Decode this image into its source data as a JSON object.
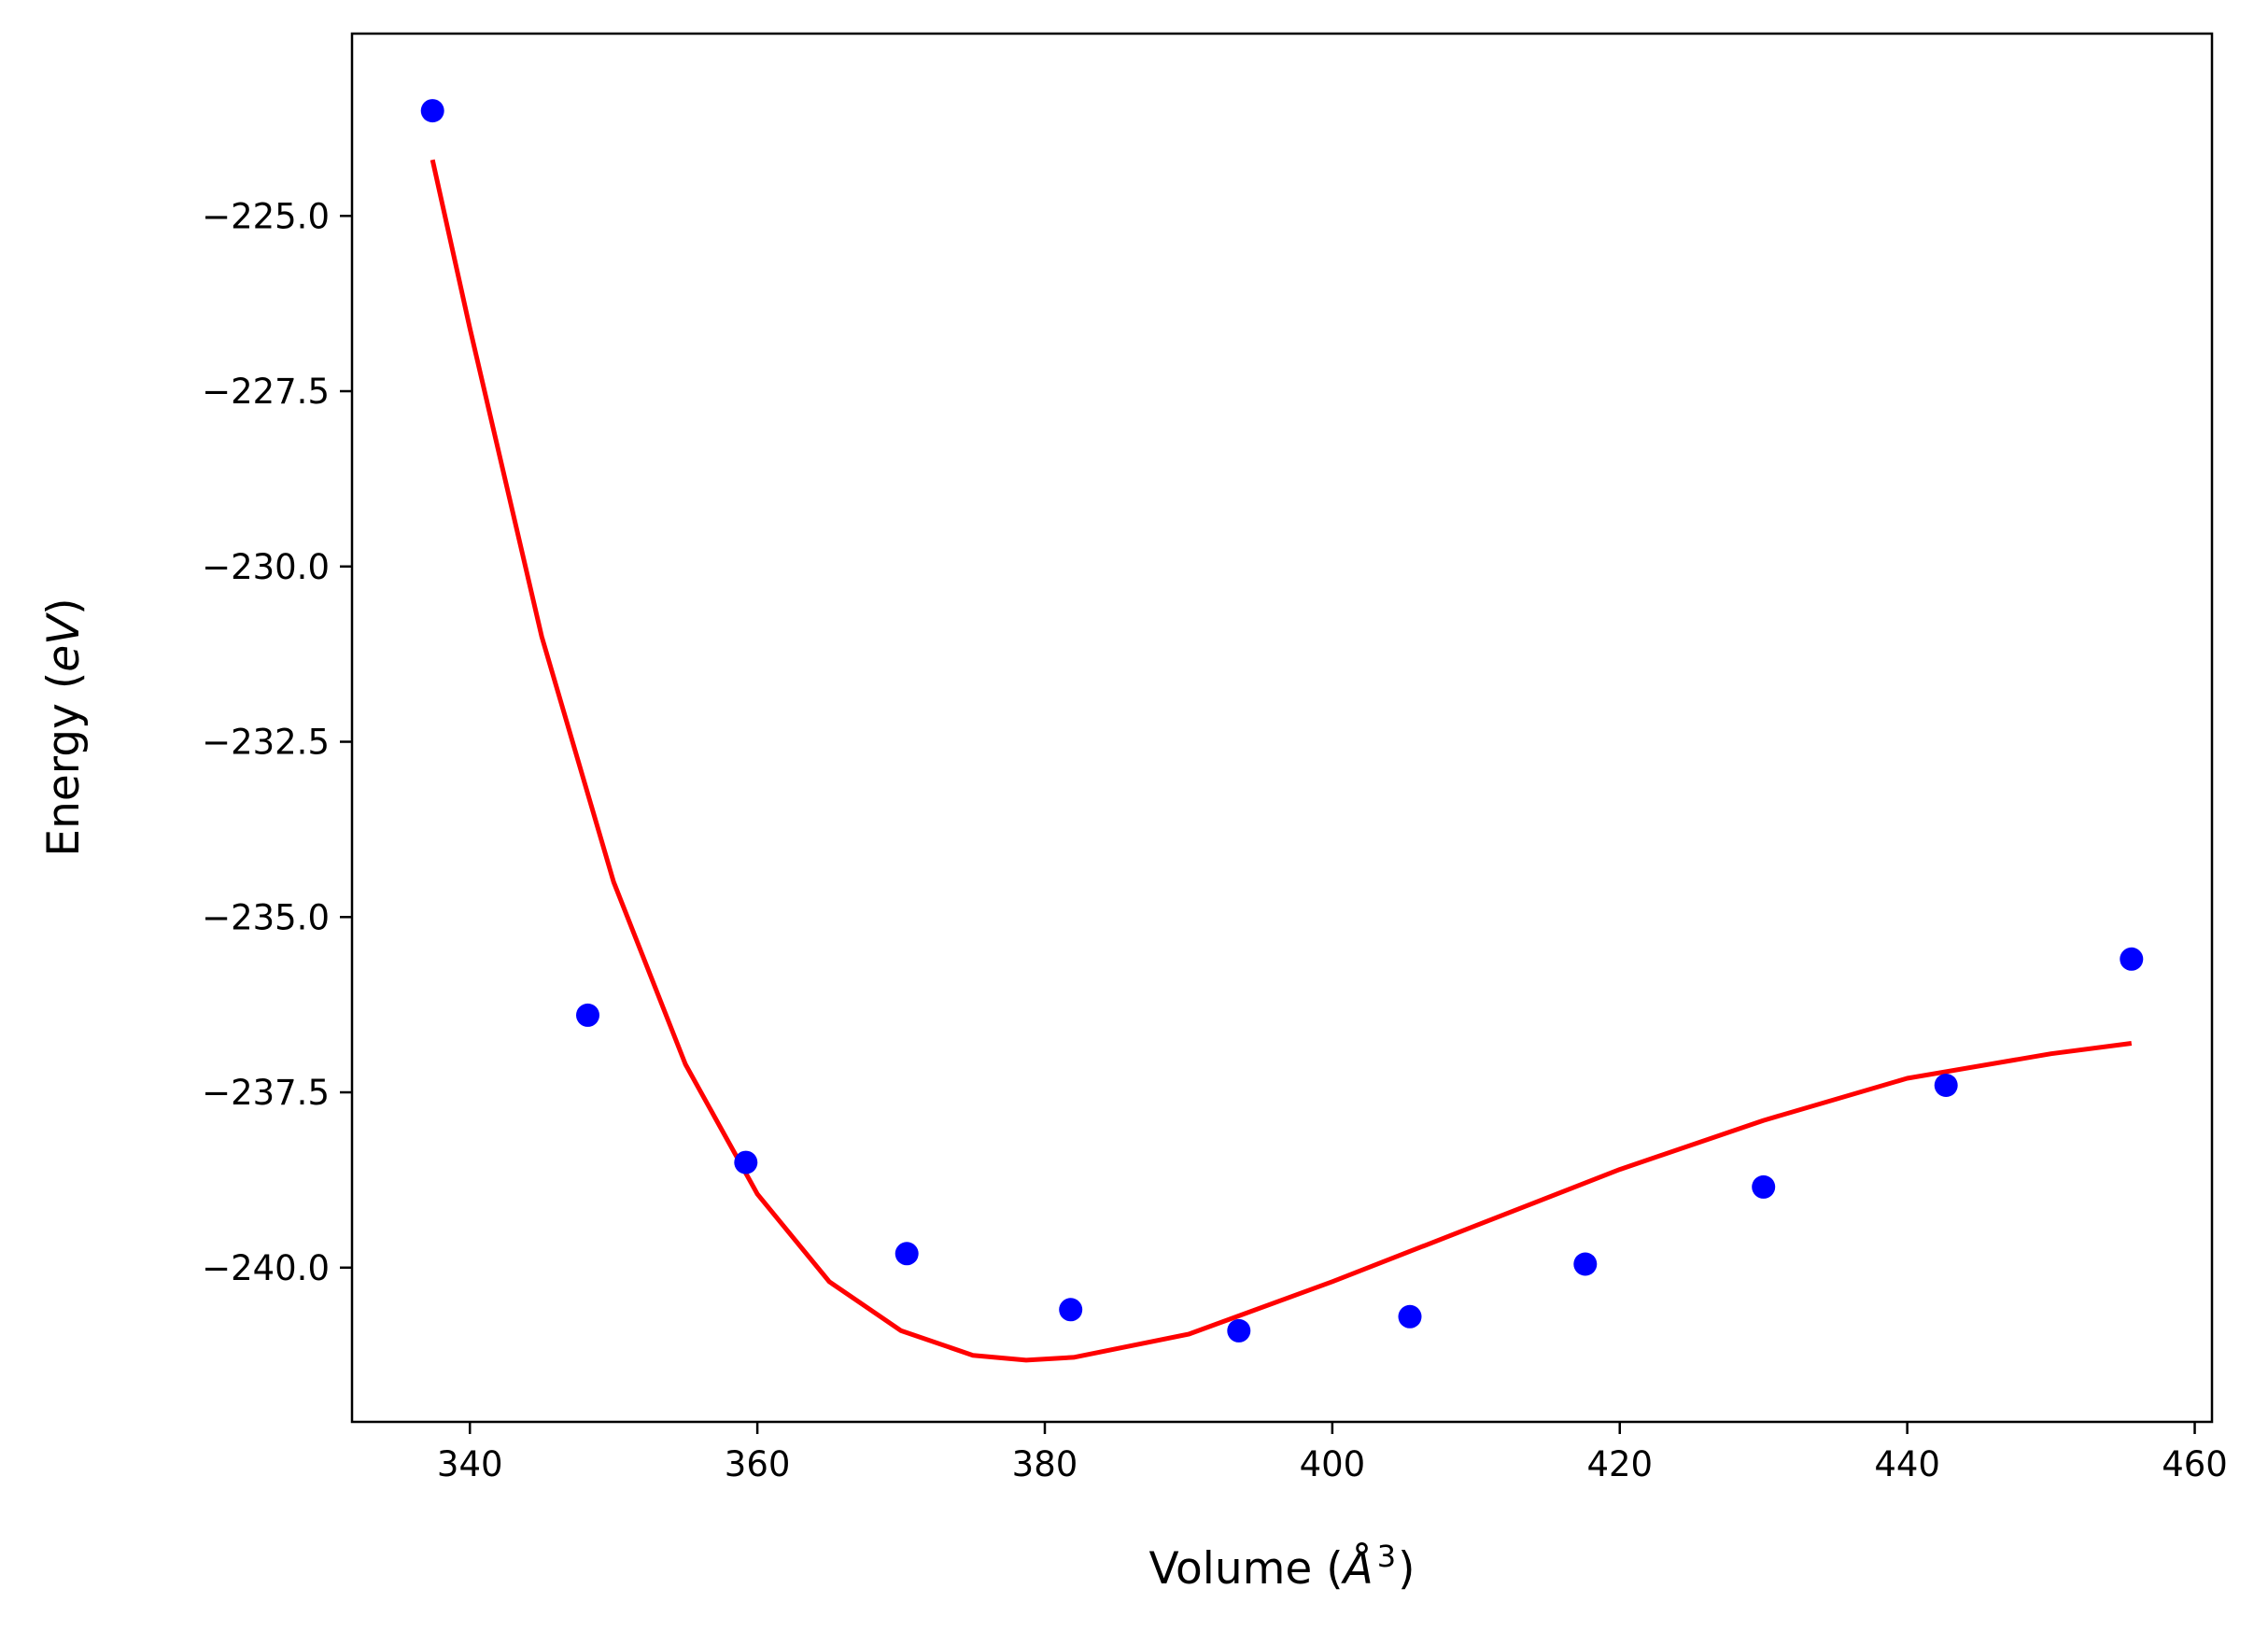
{
  "chart_data": {
    "type": "scatter",
    "title": "",
    "xlabel": {
      "prefix": "Volume (",
      "unit": "Å",
      "power": "3",
      "suffix": ")"
    },
    "ylabel": {
      "prefix": "Energy (",
      "unit": "eV",
      "suffix": ")"
    },
    "xlim": [
      331.8,
      461.2
    ],
    "ylim": [
      -242.2,
      -222.4
    ],
    "x_ticks": [
      340,
      360,
      380,
      400,
      420,
      440,
      460
    ],
    "y_ticks": [
      -225.0,
      -227.5,
      -230.0,
      -232.5,
      -235.0,
      -237.5,
      -240.0
    ],
    "x_tick_labels": [
      "340",
      "360",
      "380",
      "400",
      "420",
      "440",
      "460"
    ],
    "y_tick_labels": [
      "−225.0",
      "−227.5",
      "−230.0",
      "−232.5",
      "−235.0",
      "−237.5",
      "−240.0"
    ],
    "grid": false,
    "legend": "none",
    "series": [
      {
        "kind": "scatter",
        "color": "#0000ff",
        "x": [
          337.4,
          348.2,
          359.2,
          370.4,
          381.8,
          393.5,
          405.4,
          417.6,
          430.0,
          442.7,
          455.6
        ],
        "y": [
          -223.5,
          -236.4,
          -238.5,
          -239.8,
          -240.6,
          -240.9,
          -240.7,
          -239.95,
          -238.85,
          -237.4,
          -235.6
        ]
      },
      {
        "kind": "line",
        "color": "#ff0000",
        "x": [
          337.4,
          340,
          345,
          350,
          355,
          360,
          365,
          370,
          375,
          378.7,
          382,
          390,
          400,
          410,
          420,
          430,
          440,
          450,
          455.6
        ],
        "y": [
          -224.2,
          -226.6,
          -231.0,
          -234.5,
          -237.1,
          -238.95,
          -240.2,
          -240.9,
          -241.25,
          -241.32,
          -241.28,
          -240.95,
          -240.2,
          -239.4,
          -238.6,
          -237.9,
          -237.3,
          -236.95,
          -236.8
        ]
      }
    ]
  }
}
